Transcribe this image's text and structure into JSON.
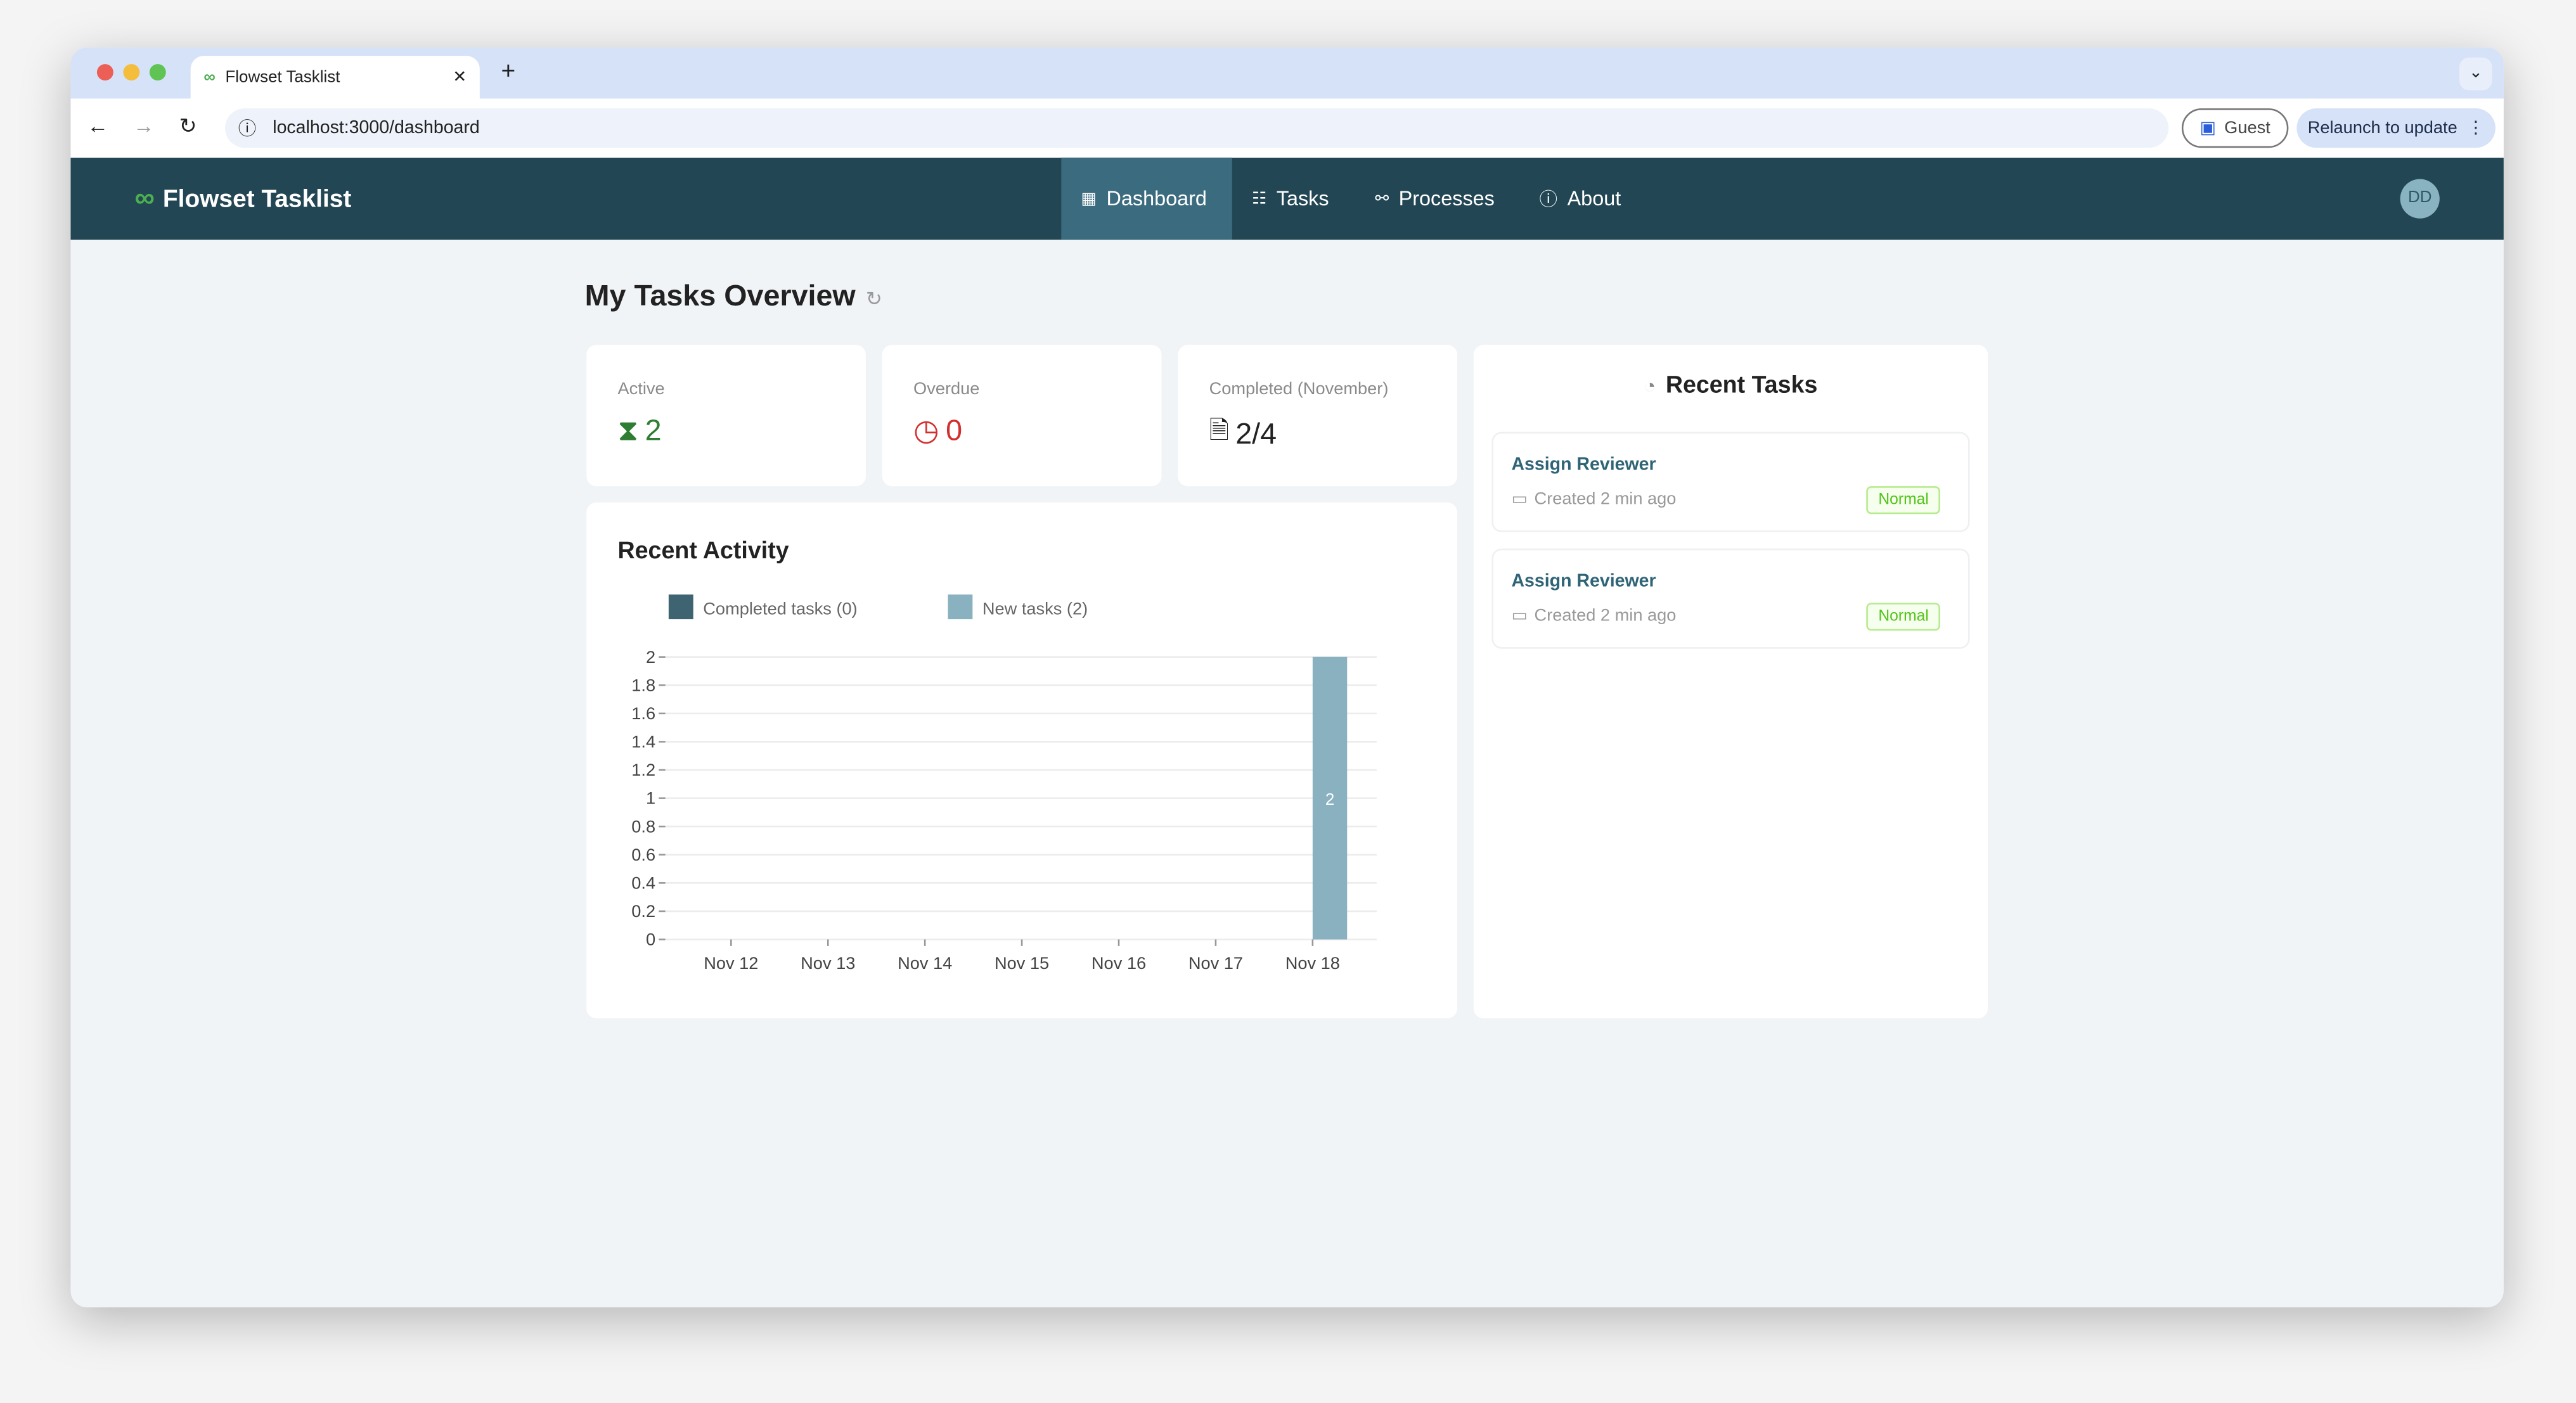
{
  "browser": {
    "tab_title": "Flowset Tasklist",
    "url": "localhost:3000/dashboard",
    "guest_label": "Guest",
    "relaunch_label": "Relaunch to update"
  },
  "app": {
    "brand": "Flowset Tasklist",
    "nav": [
      {
        "label": "Dashboard",
        "active": true
      },
      {
        "label": "Tasks"
      },
      {
        "label": "Processes"
      },
      {
        "label": "About"
      }
    ],
    "avatar_initials": "DD"
  },
  "page": {
    "title": "My Tasks Overview"
  },
  "stats": [
    {
      "label": "Active",
      "value": "2",
      "color": "#2e7d32"
    },
    {
      "label": "Overdue",
      "value": "0",
      "color": "#d32f2f"
    },
    {
      "label": "Completed (November)",
      "value": "2/4",
      "color": "#222222"
    }
  ],
  "activity": {
    "title": "Recent Activity"
  },
  "recent_tasks": {
    "title": "Recent Tasks",
    "items": [
      {
        "name": "Assign Reviewer",
        "created": "Created 2 min ago",
        "priority": "Normal"
      },
      {
        "name": "Assign Reviewer",
        "created": "Created 2 min ago",
        "priority": "Normal"
      }
    ]
  },
  "chart_data": {
    "type": "bar",
    "categories": [
      "Nov 12",
      "Nov 13",
      "Nov 14",
      "Nov 15",
      "Nov 16",
      "Nov 17",
      "Nov 18"
    ],
    "series": [
      {
        "name": "Completed tasks (0)",
        "color": "#3f6471",
        "values": [
          0,
          0,
          0,
          0,
          0,
          0,
          0
        ]
      },
      {
        "name": "New tasks (2)",
        "color": "#89b1bf",
        "values": [
          0,
          0,
          0,
          0,
          0,
          0,
          2
        ]
      }
    ],
    "yticks": [
      "0",
      "0.2",
      "0.4",
      "0.6",
      "0.8",
      "1",
      "1.2",
      "1.4",
      "1.6",
      "1.8",
      "2"
    ],
    "ylim": [
      0,
      2
    ],
    "grid": true,
    "legend": "top-left"
  }
}
